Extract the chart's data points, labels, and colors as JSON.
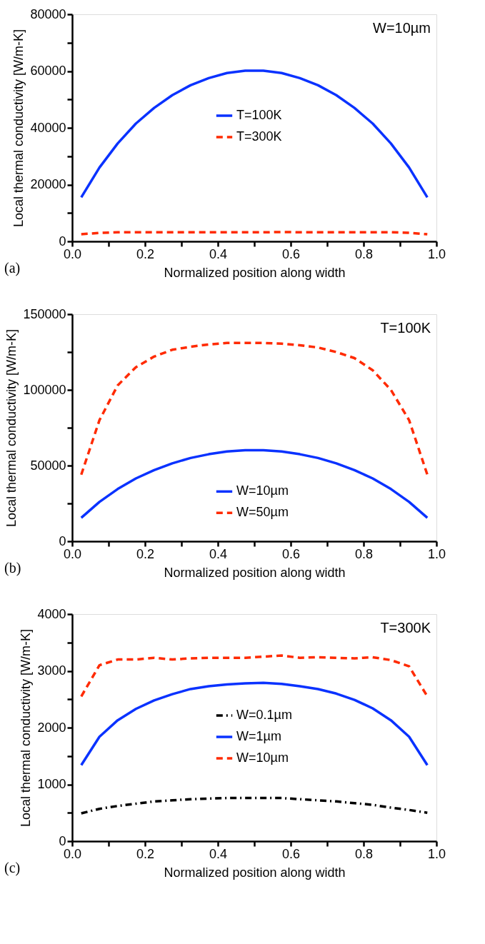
{
  "chart_data": [
    {
      "type": "line",
      "xlabel": "Normalized position along width",
      "ylabel": "Local thermal conductivity [W/m-K]",
      "annotations": [
        "W=10µm",
        "(a)"
      ],
      "x": [
        0.025,
        0.075,
        0.125,
        0.175,
        0.225,
        0.275,
        0.325,
        0.375,
        0.425,
        0.475,
        0.525,
        0.575,
        0.625,
        0.675,
        0.725,
        0.775,
        0.825,
        0.875,
        0.925,
        0.975
      ],
      "series": [
        {
          "name": "T=100K",
          "color": "#0a32ff",
          "line_style": "solid",
          "values": [
            15500,
            26000,
            34500,
            41500,
            47000,
            51500,
            55000,
            57500,
            59300,
            60100,
            60100,
            59300,
            57500,
            55000,
            51500,
            47000,
            41500,
            34500,
            26000,
            15500
          ]
        },
        {
          "name": "T=300K",
          "color": "#ff2a00",
          "line_style": "dashed",
          "values": [
            2500,
            3000,
            3200,
            3200,
            3200,
            3200,
            3200,
            3200,
            3200,
            3200,
            3200,
            3300,
            3200,
            3200,
            3200,
            3200,
            3200,
            3200,
            3000,
            2500
          ]
        }
      ],
      "xlim": [
        0,
        1
      ],
      "ylim": [
        0,
        80000
      ],
      "xticks": [
        {
          "value": 0,
          "label": "0.0"
        },
        {
          "value": 0.1,
          "label": null
        },
        0.2,
        {
          "value": 0.3,
          "label": null
        },
        0.4,
        {
          "value": 0.5,
          "label": null
        },
        0.6,
        {
          "value": 0.7,
          "label": null
        },
        0.8,
        {
          "value": 0.9,
          "label": null
        },
        {
          "value": 1,
          "label": "1.0"
        }
      ],
      "yticks": [
        0,
        {
          "value": 10000,
          "label": null
        },
        20000,
        {
          "value": 30000,
          "label": null
        },
        40000,
        {
          "value": 50000,
          "label": null
        },
        60000,
        {
          "value": 70000,
          "label": null
        },
        80000
      ],
      "grid": false,
      "legend": "center",
      "marker": "none"
    },
    {
      "type": "line",
      "xlabel": "Normalized position along width",
      "ylabel": "Local thermal conductivity [W/m-K]",
      "annotations": [
        "T=100K",
        "(b)"
      ],
      "x": [
        0.025,
        0.075,
        0.125,
        0.175,
        0.225,
        0.275,
        0.325,
        0.375,
        0.425,
        0.475,
        0.525,
        0.575,
        0.625,
        0.675,
        0.725,
        0.775,
        0.825,
        0.875,
        0.925,
        0.975
      ],
      "series": [
        {
          "name": "W=10µm",
          "color": "#0a32ff",
          "line_style": "solid",
          "values": [
            15500,
            26000,
            34500,
            41500,
            47000,
            51500,
            55000,
            57500,
            59300,
            60100,
            60100,
            59300,
            57500,
            55000,
            51500,
            47000,
            41500,
            34500,
            26000,
            15500
          ]
        },
        {
          "name": "W=50µm",
          "color": "#ff2a00",
          "line_style": "dashed",
          "values": [
            44000,
            80000,
            103000,
            115000,
            122000,
            126500,
            128500,
            130000,
            131000,
            131000,
            131000,
            130500,
            129500,
            128000,
            125000,
            121000,
            113000,
            100000,
            80000,
            44000
          ]
        }
      ],
      "xlim": [
        0,
        1
      ],
      "ylim": [
        0,
        150000
      ],
      "xticks": [
        {
          "value": 0,
          "label": "0.0"
        },
        {
          "value": 0.1,
          "label": null
        },
        0.2,
        {
          "value": 0.3,
          "label": null
        },
        0.4,
        {
          "value": 0.5,
          "label": null
        },
        0.6,
        {
          "value": 0.7,
          "label": null
        },
        0.8,
        {
          "value": 0.9,
          "label": null
        },
        {
          "value": 1,
          "label": "1.0"
        }
      ],
      "yticks": [
        0,
        {
          "value": 25000,
          "label": null
        },
        50000,
        {
          "value": 75000,
          "label": null
        },
        100000,
        {
          "value": 125000,
          "label": null
        },
        150000
      ],
      "grid": false,
      "legend": "bottom",
      "marker": "none"
    },
    {
      "type": "line",
      "xlabel": "Normalized position along width",
      "ylabel": "Local thermal conductivity [W/m-K]",
      "annotations": [
        "T=300K",
        "(c)"
      ],
      "x": [
        0.025,
        0.075,
        0.125,
        0.175,
        0.225,
        0.275,
        0.325,
        0.375,
        0.425,
        0.475,
        0.525,
        0.575,
        0.625,
        0.675,
        0.725,
        0.775,
        0.825,
        0.875,
        0.925,
        0.975
      ],
      "series": [
        {
          "name": "W=0.1µm",
          "color": "#000000",
          "line_style": "dashdot",
          "values": [
            490,
            570,
            620,
            660,
            700,
            720,
            740,
            750,
            760,
            760,
            760,
            760,
            740,
            720,
            700,
            670,
            640,
            590,
            550,
            500
          ]
        },
        {
          "name": "W=1µm",
          "color": "#0a32ff",
          "line_style": "solid",
          "values": [
            1340,
            1840,
            2130,
            2330,
            2480,
            2590,
            2680,
            2730,
            2760,
            2780,
            2790,
            2770,
            2730,
            2680,
            2600,
            2490,
            2340,
            2130,
            1840,
            1340
          ]
        },
        {
          "name": "W=10µm",
          "color": "#ff2a00",
          "line_style": "dashed",
          "values": [
            2550,
            3100,
            3200,
            3200,
            3230,
            3200,
            3220,
            3230,
            3230,
            3230,
            3250,
            3270,
            3230,
            3240,
            3230,
            3220,
            3240,
            3190,
            3080,
            2550
          ]
        }
      ],
      "xlim": [
        0,
        1
      ],
      "ylim": [
        0,
        4000
      ],
      "xticks": [
        {
          "value": 0,
          "label": "0.0"
        },
        {
          "value": 0.1,
          "label": null
        },
        0.2,
        {
          "value": 0.3,
          "label": null
        },
        0.4,
        {
          "value": 0.5,
          "label": null
        },
        0.6,
        {
          "value": 0.7,
          "label": null
        },
        0.8,
        {
          "value": 0.9,
          "label": null
        },
        {
          "value": 1,
          "label": "1.0"
        }
      ],
      "yticks": [
        0,
        {
          "value": 500,
          "label": null
        },
        1000,
        {
          "value": 1500,
          "label": null
        },
        2000,
        {
          "value": 2500,
          "label": null
        },
        3000,
        {
          "value": 3500,
          "label": null
        },
        4000
      ],
      "grid": false,
      "legend": "center",
      "marker": "none"
    }
  ]
}
